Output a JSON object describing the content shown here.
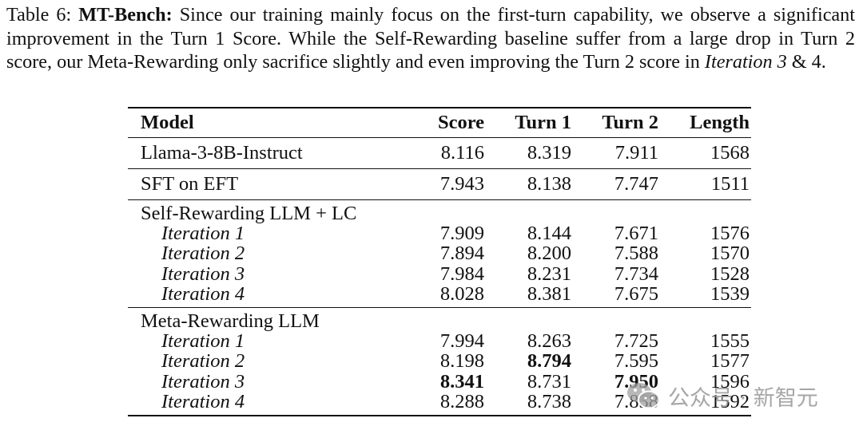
{
  "caption": {
    "label": "Table 6: ",
    "bold_title": "MT-Bench:",
    "text_a": " Since our training mainly focus on the first-turn capability, we observe a significant improvement in the Turn 1 Score. While the Self-Rewarding baseline suffer from a large drop in Turn 2 score, our Meta-Rewarding only sacrifice slightly and even improving the Turn 2 score in ",
    "italic_part": "Iteration 3",
    "text_b": " & 4."
  },
  "table": {
    "headers": [
      "Model",
      "Score",
      "Turn 1",
      "Turn 2",
      "Length"
    ],
    "row_llama": [
      "Llama-3-8B-Instruct",
      "8.116",
      "8.319",
      "7.911",
      "1568"
    ],
    "row_sft": [
      "SFT on EFT",
      "7.943",
      "8.138",
      "7.747",
      "1511"
    ],
    "group_self": {
      "title": "Self-Rewarding LLM + LC",
      "rows": [
        [
          "Iteration 1",
          "7.909",
          "8.144",
          "7.671",
          "1576"
        ],
        [
          "Iteration 2",
          "7.894",
          "8.200",
          "7.588",
          "1570"
        ],
        [
          "Iteration 3",
          "7.984",
          "8.231",
          "7.734",
          "1528"
        ],
        [
          "Iteration 4",
          "8.028",
          "8.381",
          "7.675",
          "1539"
        ]
      ]
    },
    "group_meta": {
      "title": "Meta-Rewarding LLM",
      "rows": [
        [
          "Iteration 1",
          "7.994",
          "8.263",
          "7.725",
          "1555"
        ],
        [
          "Iteration 2",
          "8.198",
          "8.794",
          "7.595",
          "1577"
        ],
        [
          "Iteration 3",
          "8.341",
          "8.731",
          "7.950",
          "1596"
        ],
        [
          "Iteration 4",
          "8.288",
          "8.738",
          "7.838",
          "1592"
        ]
      ]
    }
  },
  "watermark": {
    "text": "公众号 · 新智元",
    "icon": "wechat-icon",
    "color": "#969696"
  }
}
